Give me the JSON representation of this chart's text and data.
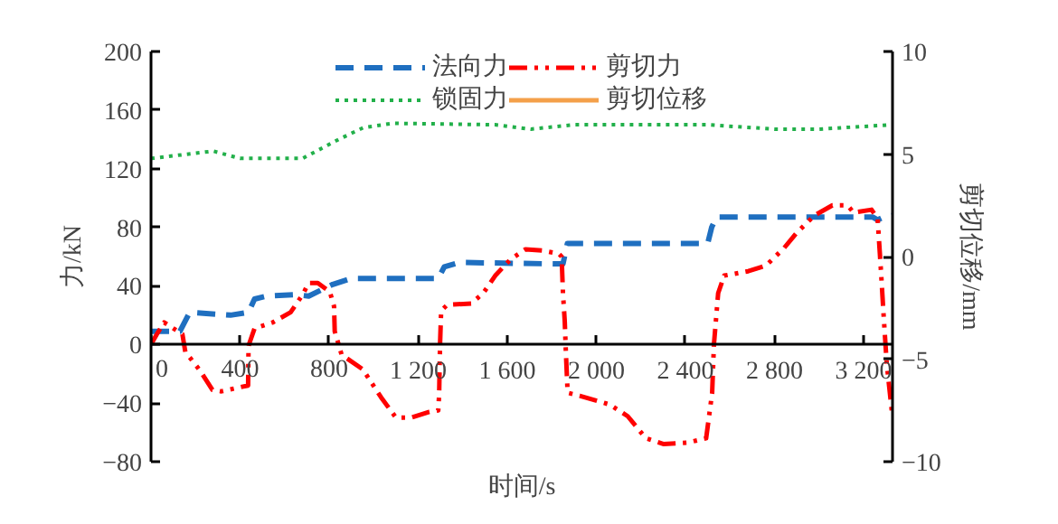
{
  "chart_data": {
    "type": "line",
    "xlabel": "时间/s",
    "ylabel": "力/kN",
    "y2label": "剪切位移/mm",
    "xlim": [
      0,
      3330
    ],
    "ylim": [
      -80,
      200
    ],
    "y2lim": [
      -10,
      10
    ],
    "xticks": [
      0,
      400,
      800,
      {
        "value": 1200,
        "label": "1 200"
      },
      {
        "value": 1600,
        "label": "1 600"
      },
      {
        "value": 2000,
        "label": "2 000"
      },
      {
        "value": 2400,
        "label": "2 400"
      },
      {
        "value": 2800,
        "label": "2 800"
      },
      {
        "value": 3200,
        "label": "3 200"
      }
    ],
    "yticks": [
      -80,
      -40,
      0,
      40,
      80,
      120,
      160,
      200
    ],
    "y2ticks": [
      -10,
      -5,
      0,
      5,
      10
    ],
    "grid": false,
    "legend": "top",
    "marker": "none",
    "series": [
      {
        "name": "法向力",
        "color": "#1f6fc0",
        "line_style": "dashed",
        "x": [
          0,
          130,
          174,
          357,
          438,
          465,
          519,
          654,
          708,
          816,
          897,
          1290,
          1317,
          1384,
          1817,
          1850,
          1870,
          2500,
          2518,
          2540,
          3240,
          3263,
          3290,
          3330
        ],
        "values": [
          9,
          9,
          22,
          20,
          22,
          31,
          33,
          34,
          33,
          41,
          45,
          45,
          53,
          56,
          55,
          55,
          69,
          69,
          80,
          87,
          87,
          85,
          87,
          88
        ]
      },
      {
        "name": "锁固力",
        "color": "#22b04a",
        "line_style": "dotted",
        "x": [
          0,
          280,
          400,
          680,
          843,
          953,
          1087,
          1545,
          1706,
          1900,
          2200,
          2500,
          2800,
          3000,
          3330
        ],
        "values": [
          127,
          132,
          127,
          127,
          140,
          148,
          151,
          150,
          147,
          150,
          150,
          150,
          147,
          147,
          150
        ]
      },
      {
        "name": "剪切力",
        "color": "#ff0000",
        "line_style": "dashdot",
        "x": [
          0,
          30,
          59,
          141,
          154,
          221,
          276,
          316,
          436,
          438,
          440,
          465,
          546,
          627,
          681,
          708,
          749,
          803,
          822,
          825,
          856,
          951,
          1033,
          1100,
          1168,
          1250,
          1290,
          1294,
          1298,
          1303,
          1330,
          1438,
          1492,
          1546,
          1614,
          1682,
          1763,
          1831,
          1844,
          1850,
          1858,
          1863,
          1871,
          1925,
          2060,
          2141,
          2222,
          2303,
          2411,
          2493,
          2520,
          2528,
          2547,
          2574,
          2682,
          2763,
          2844,
          2898,
          2979,
          3060,
          3128,
          3155,
          3236,
          3263,
          3277,
          3290,
          3304,
          3330
        ],
        "values": [
          0,
          8,
          15,
          7,
          -5,
          -18,
          -31,
          -32,
          -28,
          -2,
          0,
          11,
          15,
          22,
          34,
          42,
          42,
          36,
          26,
          9,
          -7,
          -17,
          -36,
          -50,
          -50,
          -46,
          -45,
          -34,
          0,
          23,
          27,
          28,
          35,
          47,
          58,
          65,
          64,
          62,
          60,
          35,
          16,
          -5,
          -33,
          -35,
          -41,
          -49,
          -64,
          -68,
          -67,
          -64,
          -33,
          0,
          35,
          47,
          50,
          54,
          66,
          76,
          88,
          95,
          95,
          90,
          92,
          86,
          53,
          20,
          -13,
          -50
        ]
      },
      {
        "name": "剪切位移",
        "color": "#f4a04a",
        "line_style": "solid"
      }
    ]
  }
}
